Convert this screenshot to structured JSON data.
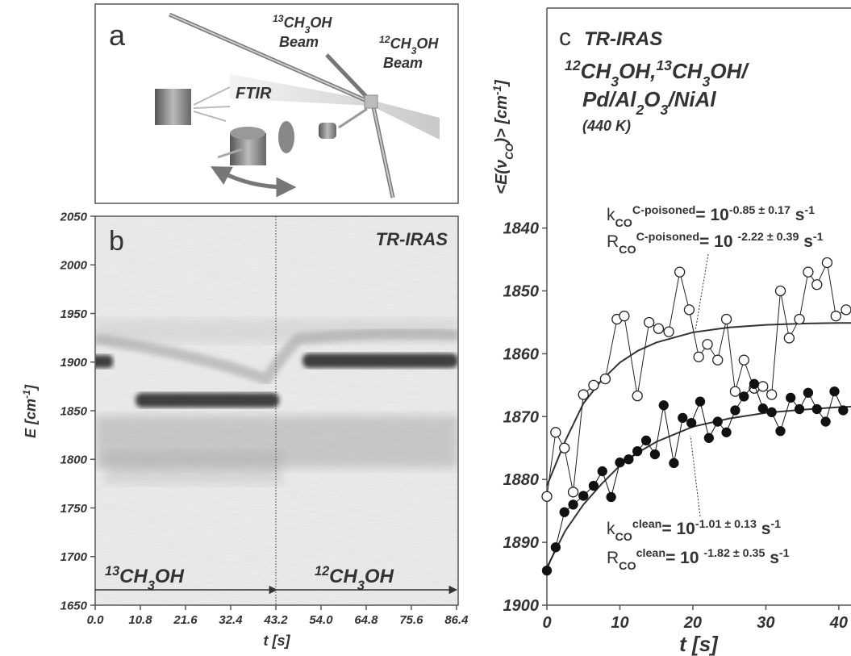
{
  "panel_a": {
    "label": "a",
    "beam_13": [
      "13",
      "CH",
      "3",
      "OH"
    ],
    "beam_13_word": "Beam",
    "beam_12": [
      "12",
      "CH",
      "3",
      "OH"
    ],
    "beam_12_word": "Beam",
    "ftir": "FTIR"
  },
  "chart_data": [
    {
      "type": "heatmap",
      "panel_label": "b",
      "annotation": "TR-IRAS",
      "xlabel": "t [s]",
      "ylabel": [
        "E [cm",
        "-1",
        "]"
      ],
      "xlim": [
        0,
        86.8
      ],
      "ylim": [
        1650,
        2050
      ],
      "xticks": [
        {
          "value": 0,
          "label": "0.0"
        },
        10.8,
        21.6,
        32.4,
        43.2,
        {
          "value": 54,
          "label": "54.0"
        },
        64.8,
        75.6,
        86.4
      ],
      "yticks": [
        1650,
        1700,
        1750,
        1800,
        1850,
        1900,
        1950,
        2000,
        2050
      ],
      "marker_x": 43.2,
      "segments": [
        [
          "13",
          "CH",
          "3",
          "OH"
        ],
        [
          "12",
          "CH",
          "3",
          "OH"
        ]
      ]
    },
    {
      "type": "scatter",
      "panel_label": "c",
      "title": "TR-IRAS",
      "subtitle": [
        [
          "12",
          "CH",
          "3",
          "OH,",
          "13",
          "CH",
          "3",
          "OH/"
        ],
        [
          "Pd/Al",
          "2",
          "O",
          "3",
          "/NiAl"
        ],
        [
          "(440 K)"
        ]
      ],
      "ylabel": [
        "<E(ν",
        "CO",
        ")> [cm",
        "-1",
        "]"
      ],
      "xlabel": "t [s]",
      "xlim": [
        0,
        42
      ],
      "ylim": [
        1900,
        1805
      ],
      "xticks": [
        0,
        10,
        20,
        30,
        40
      ],
      "yticks": [
        1840,
        1850,
        1860,
        1870,
        1880,
        1890,
        1900
      ],
      "series": [
        {
          "marker": "open",
          "color": "#222",
          "x": [
            0,
            1.2,
            2.4,
            3.6,
            5,
            6.4,
            8,
            9.6,
            10.6,
            12.4,
            14,
            15.3,
            16.7,
            18.2,
            19.5,
            20.8,
            22,
            23.4,
            24.6,
            25.8,
            27,
            28.4,
            29.6,
            30.8,
            32,
            33.2,
            34.6,
            35.8,
            37,
            38.4,
            39.6,
            41
          ],
          "values": [
            1882.7,
            1872.5,
            1875,
            1882,
            1866.5,
            1865,
            1864,
            1854.5,
            1854,
            1866.7,
            1855,
            1856,
            1856.5,
            1847,
            1853,
            1860.5,
            1858.5,
            1861,
            1854.5,
            1866,
            1861,
            1865.5,
            1865.2,
            1866.5,
            1850,
            1857.5,
            1854.5,
            1847,
            1849,
            1845.5,
            1854,
            1853
          ]
        },
        {
          "marker": "filled",
          "color": "#111",
          "x": [
            0,
            1.2,
            2.4,
            3.6,
            5,
            6.4,
            7.6,
            8.8,
            10,
            11.2,
            12.4,
            13.6,
            14.8,
            16,
            17.4,
            18.6,
            19.8,
            21,
            22.2,
            23.4,
            24.6,
            25.8,
            27,
            28.4,
            29.6,
            30.8,
            32,
            33.4,
            34.6,
            35.8,
            37,
            38.2,
            39.4,
            40.6
          ],
          "values": [
            1894.5,
            1890.8,
            1885.2,
            1884,
            1882.6,
            1881,
            1878.7,
            1882.8,
            1877.3,
            1876.8,
            1875.5,
            1873.8,
            1876,
            1868.2,
            1877.4,
            1870.2,
            1871,
            1867.6,
            1873.4,
            1870.8,
            1872.5,
            1869,
            1866.8,
            1864.8,
            1868.7,
            1869.3,
            1872.3,
            1867,
            1868.8,
            1866.2,
            1868.8,
            1870.8,
            1866,
            1869
          ]
        }
      ],
      "fits": [
        {
          "color": "#333",
          "x": [
            0,
            2.5,
            5,
            7.5,
            10,
            12.5,
            15,
            20,
            25,
            30,
            35,
            40,
            42
          ],
          "values": [
            1881,
            1873.9,
            1867.9,
            1864.2,
            1861.4,
            1859.5,
            1858.2,
            1856.6,
            1855.8,
            1855.4,
            1855.2,
            1855.1,
            1855.1
          ]
        },
        {
          "color": "#333",
          "x": [
            0,
            2.5,
            5,
            7.5,
            10,
            12.5,
            15,
            20,
            25,
            30,
            35,
            40,
            42
          ],
          "values": [
            1894,
            1888.2,
            1884,
            1880.7,
            1877.8,
            1875.7,
            1874,
            1871.6,
            1870.3,
            1869.4,
            1868.9,
            1868.5,
            1868.4
          ]
        }
      ],
      "annotations": [
        [
          "k",
          "CO",
          "C-poisoned",
          "= 10",
          "-0.85 ± 0.17",
          " s",
          "-1"
        ],
        [
          "R",
          "CO",
          "C-poisoned",
          "= 10 ",
          "-2.22 ± 0.39",
          " s",
          "-1"
        ],
        [
          "k",
          "CO",
          "clean",
          "= 10",
          "-1.01 ± 0.13",
          " s",
          "-1"
        ],
        [
          "R",
          "CO",
          "clean",
          "= 10 ",
          "-1.82 ± 0.35",
          " s",
          "-1"
        ]
      ]
    }
  ]
}
